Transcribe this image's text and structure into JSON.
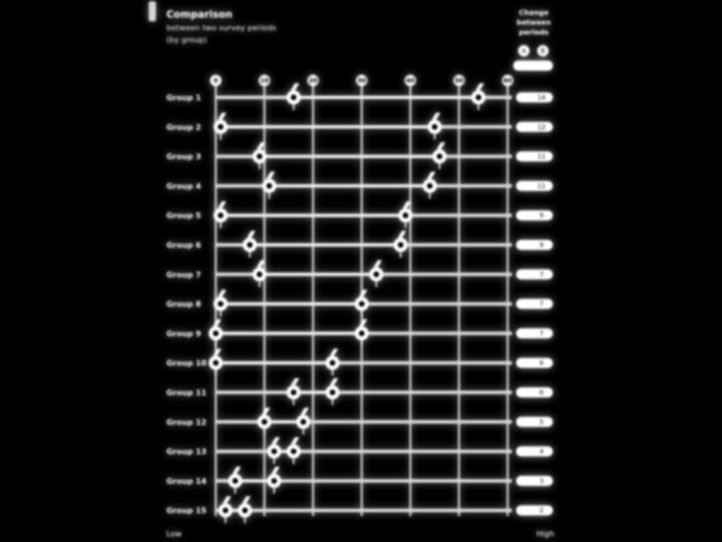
{
  "header": {
    "title": "Comparison",
    "subtitle_lines": [
      "between two survey periods",
      "(by group)"
    ]
  },
  "legend": {
    "title_lines": [
      "Change",
      "between",
      "periods"
    ],
    "markers": [
      "A",
      "B"
    ]
  },
  "footer": {
    "left": "Low",
    "right": "High"
  },
  "chart_data": {
    "type": "scatter",
    "title": "Comparison",
    "subtitle": "between two survey periods (by group)",
    "x_ticks": [
      "0",
      "10",
      "20",
      "30",
      "40",
      "50",
      "60"
    ],
    "xlim": [
      0,
      60
    ],
    "grid": true,
    "categories": [
      "Group 1",
      "Group 2",
      "Group 3",
      "Group 4",
      "Group 5",
      "Group 6",
      "Group 7",
      "Group 8",
      "Group 9",
      "Group 10",
      "Group 11",
      "Group 12",
      "Group 13",
      "Group 14",
      "Group 15"
    ],
    "series": [
      {
        "values": [
          16,
          1,
          9,
          11,
          1,
          7,
          9,
          1,
          0,
          0,
          16,
          10,
          12,
          4,
          2
        ]
      },
      {
        "values": [
          54,
          45,
          46,
          44,
          39,
          38,
          33,
          30,
          30,
          24,
          24,
          18,
          16,
          12,
          6
        ]
      }
    ],
    "right_column_values": [
      "14",
      "12",
      "11",
      "11",
      "9",
      "9",
      "7",
      "7",
      "7",
      "6",
      "6",
      "5",
      "4",
      "3",
      "2"
    ]
  }
}
